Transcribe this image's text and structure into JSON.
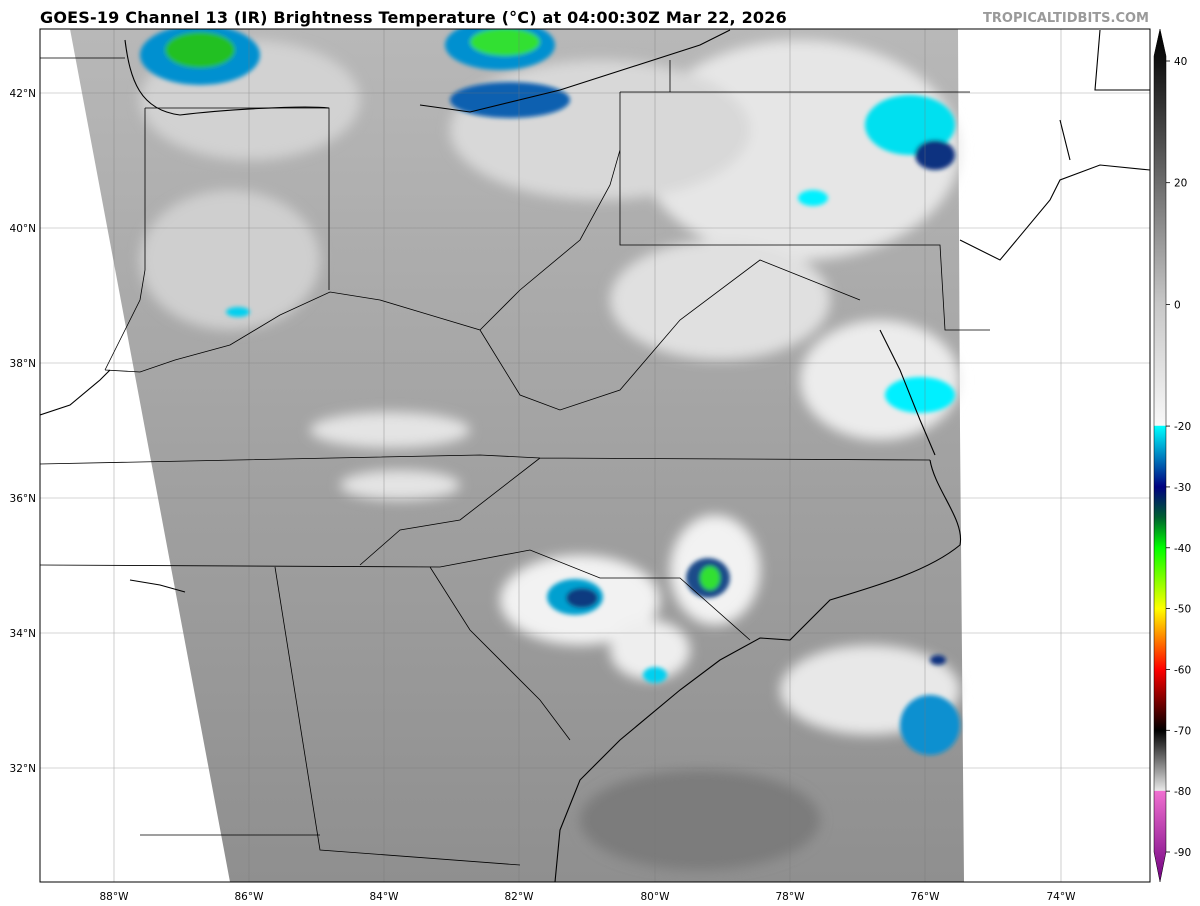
{
  "header": {
    "title": "GOES-19 Channel 13 (IR) Brightness Temperature (°C) at 04:00:30Z Mar 22, 2026",
    "watermark": "TROPICALTIDBITS.COM"
  },
  "map": {
    "lon_labels": [
      "88°W",
      "86°W",
      "84°W",
      "82°W",
      "80°W",
      "78°W",
      "76°W",
      "74°W"
    ],
    "lat_labels": [
      "42°N",
      "40°N",
      "38°N",
      "36°N",
      "34°N",
      "32°N"
    ],
    "gridlines": true,
    "land_background": "#ffffff",
    "border_color": "#000000"
  },
  "colorbar": {
    "unit": "°C",
    "range": [
      -95,
      45
    ],
    "tick_labels": [
      "40",
      "20",
      "0",
      "-20",
      "-30",
      "-40",
      "-50",
      "-60",
      "-70",
      "-80",
      "-90"
    ],
    "tick_values": [
      40,
      20,
      0,
      -20,
      -30,
      -40,
      -50,
      -60,
      -70,
      -80,
      -90
    ],
    "stops": [
      {
        "t": 45,
        "color": "#000000"
      },
      {
        "t": 40,
        "color": "#111111"
      },
      {
        "t": 0,
        "color": "#c8c8c8"
      },
      {
        "t": -19.9,
        "color": "#f8f8f8"
      },
      {
        "t": -20,
        "color": "#00ffff"
      },
      {
        "t": -25,
        "color": "#0080c0"
      },
      {
        "t": -30,
        "color": "#000080"
      },
      {
        "t": -35,
        "color": "#006030"
      },
      {
        "t": -40,
        "color": "#00ff00"
      },
      {
        "t": -50,
        "color": "#ffff00"
      },
      {
        "t": -55,
        "color": "#ff8000"
      },
      {
        "t": -60,
        "color": "#ff0000"
      },
      {
        "t": -70,
        "color": "#000000"
      },
      {
        "t": -79.9,
        "color": "#e8e8e8"
      },
      {
        "t": -80,
        "color": "#f070d0"
      },
      {
        "t": -95,
        "color": "#700080"
      }
    ]
  }
}
